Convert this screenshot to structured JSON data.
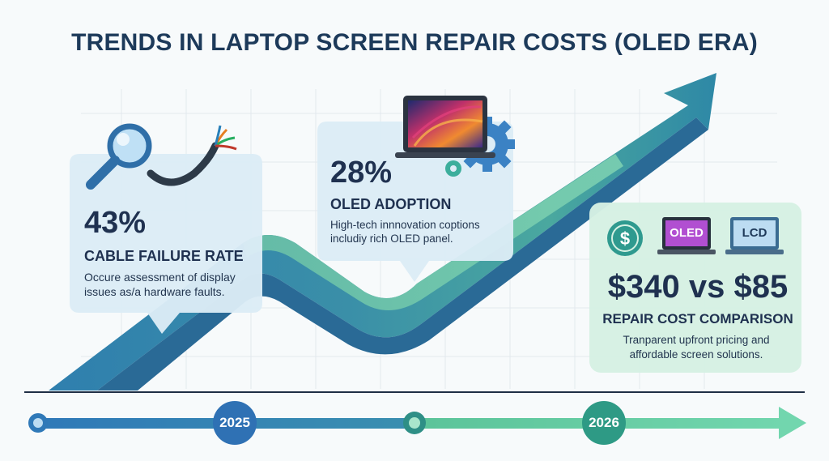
{
  "title": "TRENDS IN LAPTOP SCREEN REPAIR COSTS (OLED ERA)",
  "colors": {
    "title": "#1d3a5a",
    "trend_dark": "#2f78a8",
    "trend_mid": "#3e8fa6",
    "trend_green": "#5fc39b",
    "card_blue": "#dcecf6",
    "card_green": "#d6f1e3",
    "text_dark": "#1f3150"
  },
  "cards": {
    "cable": {
      "percent": "43%",
      "label": "CABLE FAILURE RATE",
      "description_line1": "Occure assessment of display",
      "description_line2": "issues as/a hardware faults.",
      "icons": [
        "magnifier-icon",
        "cable-icon"
      ]
    },
    "oled": {
      "percent": "28%",
      "label": "OLED ADOPTION",
      "description_line1": "High-tech innnovation coptions",
      "description_line2": "includiy rich OLED panel.",
      "icons": [
        "laptop-icon",
        "gear-icon"
      ]
    },
    "cost": {
      "price": "$340 vs $85",
      "label": "REPAIR COST COMPARISON",
      "description_line1": "Tranparent upfront pricing and",
      "description_line2": "affordable screen solutions.",
      "icons": [
        "dollar-icon",
        "oled-laptop-icon",
        "lcd-laptop-icon"
      ],
      "oled_badge": "OLED",
      "lcd_badge": "LCD"
    }
  },
  "timeline": {
    "years": [
      "2025",
      "2026"
    ]
  }
}
